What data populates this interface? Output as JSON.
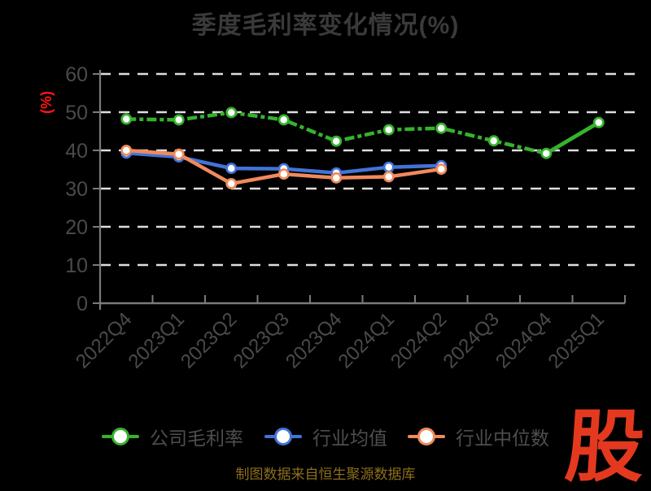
{
  "title": "季度毛利率变化情况(%)",
  "y_axis_label": "(%)",
  "footer_note": "制图数据来自恒生聚源数据库",
  "logo_text": "股",
  "colors": {
    "background": "#000000",
    "title_text": "#3a3a3a",
    "tick_text": "#4a4a4a",
    "legend_text": "#4e4e4e",
    "grid_line": "#dedede",
    "axis_line": "#7a7a7a",
    "y_label_red": "#ff1515",
    "footer_gold": "#8e6e1a",
    "logo_red": "#e5391f",
    "series_green": "#35b32c",
    "series_blue": "#4273d8",
    "series_orange": "#f08a5c"
  },
  "legend": [
    {
      "label": "公司毛利率",
      "color": "#35b32c"
    },
    {
      "label": "行业均值",
      "color": "#4273d8"
    },
    {
      "label": "行业中位数",
      "color": "#f08a5c"
    }
  ],
  "chart_data": {
    "type": "line",
    "title": "季度毛利率变化情况(%)",
    "ylabel": "(%)",
    "categories": [
      "2022Q4",
      "2023Q1",
      "2023Q2",
      "2023Q3",
      "2023Q4",
      "2024Q1",
      "2024Q2",
      "2024Q3",
      "2024Q4",
      "2025Q1"
    ],
    "series": [
      {
        "name": "公司毛利率",
        "color": "#35b32c",
        "style": "dashed",
        "solid_tail": true,
        "values": [
          48.2,
          48.0,
          49.9,
          48.0,
          42.4,
          45.4,
          45.8,
          42.5,
          39.2,
          47.3
        ]
      },
      {
        "name": "行业均值",
        "color": "#4273d8",
        "style": "solid",
        "solid_tail": false,
        "values": [
          39.3,
          38.3,
          35.3,
          35.2,
          34.1,
          35.6,
          36.0,
          null,
          null,
          null
        ]
      },
      {
        "name": "行业中位数",
        "color": "#f08a5c",
        "style": "solid",
        "solid_tail": false,
        "values": [
          40.0,
          39.0,
          31.3,
          33.8,
          32.8,
          33.1,
          35.1,
          null,
          null,
          null
        ]
      }
    ],
    "ylim": [
      0,
      60
    ],
    "yticks": [
      0,
      10,
      20,
      30,
      40,
      50,
      60
    ],
    "grid": true,
    "grid_style": "dashed",
    "legend_position": "bottom"
  }
}
